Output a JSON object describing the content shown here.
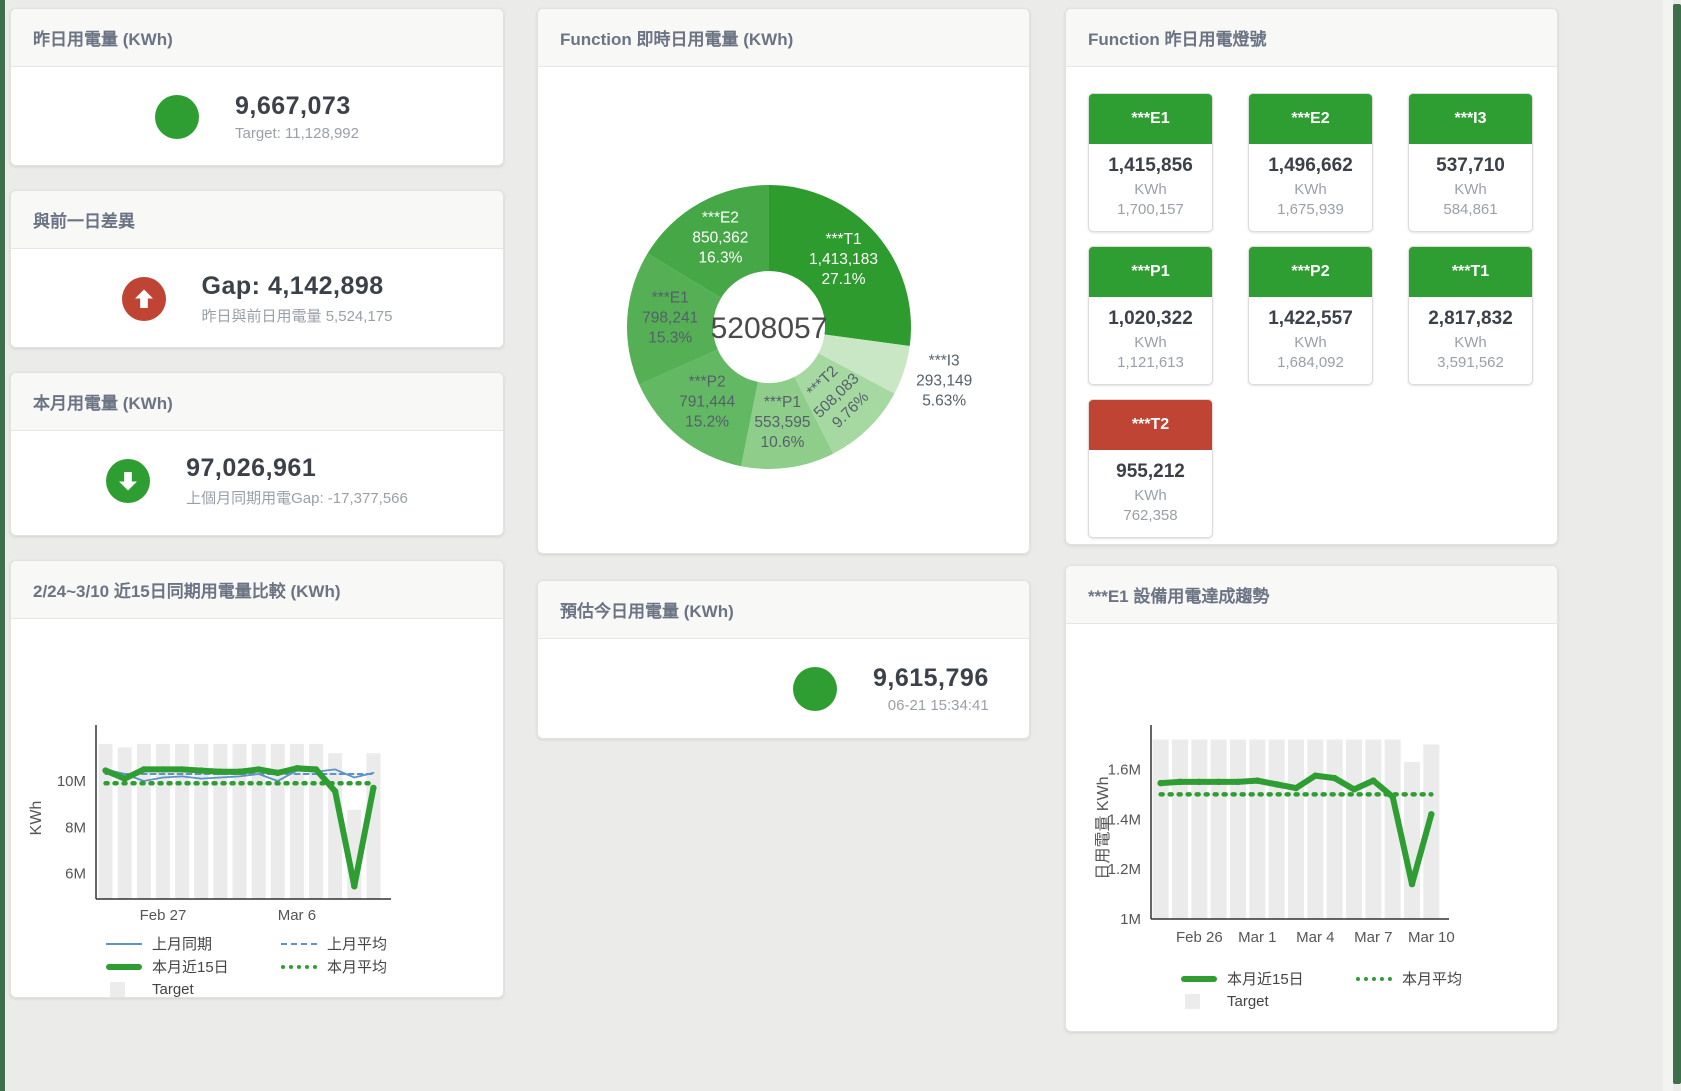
{
  "page": {
    "accent_green": "#2f9e32",
    "accent_red": "#bf4434",
    "accent_blue": "#5e92c8",
    "bar_gray": "#ebebeb"
  },
  "cards": {
    "yesterday": {
      "title": "昨日用電量 (KWh)",
      "value": "9,667,073",
      "subtitle": "Target: 11,128,992",
      "indicator": "green-dot"
    },
    "gap": {
      "title": "與前一日差異",
      "value": "Gap: 4,142,898",
      "subtitle": "昨日與前日用電量 5,524,175",
      "indicator": "red-up-arrow"
    },
    "month": {
      "title": "本月用電量 (KWh)",
      "value": "97,026,961",
      "subtitle": "上個月同期用電Gap: -17,377,566",
      "indicator": "green-down-arrow"
    },
    "donut": {
      "title": "Function 即時日用電量 (KWh)"
    },
    "lights": {
      "title": "Function 昨日用電燈號",
      "tiles": [
        {
          "name": "***E1",
          "value": "1,415,856",
          "unit": "KWh",
          "target": "1,700,157",
          "status": "green"
        },
        {
          "name": "***E2",
          "value": "1,496,662",
          "unit": "KWh",
          "target": "1,675,939",
          "status": "green"
        },
        {
          "name": "***I3",
          "value": "537,710",
          "unit": "KWh",
          "target": "584,861",
          "status": "green"
        },
        {
          "name": "***P1",
          "value": "1,020,322",
          "unit": "KWh",
          "target": "1,121,613",
          "status": "green"
        },
        {
          "name": "***P2",
          "value": "1,422,557",
          "unit": "KWh",
          "target": "1,684,092",
          "status": "green"
        },
        {
          "name": "***T1",
          "value": "2,817,832",
          "unit": "KWh",
          "target": "3,591,562",
          "status": "green"
        },
        {
          "name": "***T2",
          "value": "955,212",
          "unit": "KWh",
          "target": "762,358",
          "status": "red"
        }
      ]
    },
    "compare": {
      "title": "2/24~3/10 近15日同期用電量比較 (KWh)"
    },
    "forecast": {
      "title": "預估今日用電量 (KWh)",
      "value": "9,615,796",
      "subtitle": "06-21 15:34:41",
      "indicator": "green-dot"
    },
    "trend": {
      "title": "***E1 設備用電達成趨勢"
    }
  },
  "chart_data": [
    {
      "type": "pie",
      "title": "Function 即時日用電量 (KWh)",
      "center_label": "5208057",
      "unit": "KWh",
      "slices": [
        {
          "label": "***T1",
          "value": 1413183,
          "value_str": "1,413,183",
          "pct": "27.1%",
          "color": "#2e9b2e",
          "label_style": "inside-white"
        },
        {
          "label": "***I3",
          "value": 293149,
          "value_str": "293,149",
          "pct": "5.63%",
          "color": "#c9e7c5",
          "label_style": "outside"
        },
        {
          "label": "***T2",
          "value": 508083,
          "value_str": "508,083",
          "pct": "9.76%",
          "color": "#a6d9a2",
          "label_style": "inside-rotated"
        },
        {
          "label": "***P1",
          "value": 553595,
          "value_str": "553,595",
          "pct": "10.6%",
          "color": "#8fcd8b",
          "label_style": "inside"
        },
        {
          "label": "***P2",
          "value": 791444,
          "value_str": "791,444",
          "pct": "15.2%",
          "color": "#63b863",
          "label_style": "inside"
        },
        {
          "label": "***E1",
          "value": 798241,
          "value_str": "798,241",
          "pct": "15.3%",
          "color": "#55af55",
          "label_style": "inside"
        },
        {
          "label": "***E2",
          "value": 850362,
          "value_str": "850,362",
          "pct": "16.3%",
          "color": "#45a745",
          "label_style": "inside-white"
        }
      ]
    },
    {
      "type": "line",
      "title": "2/24~3/10 近15日同期用電量比較 (KWh)",
      "ylabel": "KWh",
      "ylim": [
        4900000,
        11900000
      ],
      "yticks": [
        {
          "v": 6000000,
          "label": "6M"
        },
        {
          "v": 8000000,
          "label": "8M"
        },
        {
          "v": 10000000,
          "label": "10M"
        }
      ],
      "x": [
        "2/24",
        "2/25",
        "2/26",
        "2/27",
        "2/28",
        "3/1",
        "3/2",
        "3/3",
        "3/4",
        "3/5",
        "3/6",
        "3/7",
        "3/8",
        "3/9",
        "3/10"
      ],
      "xticks": [
        {
          "i": 3,
          "label": "Feb 27"
        },
        {
          "i": 10,
          "label": "Mar 6"
        }
      ],
      "bars": {
        "name": "Target",
        "color": "#ebebeb",
        "values": [
          11600000,
          11450000,
          11600000,
          11600000,
          11600000,
          11600000,
          11600000,
          11600000,
          11600000,
          11600000,
          11600000,
          11600000,
          11200000,
          8750000,
          11200000
        ]
      },
      "series": [
        {
          "name": "上月同期",
          "color": "#5e92c8",
          "width": 1.8,
          "dash": "",
          "marker": false,
          "values": [
            10500000,
            10300000,
            10000000,
            10150000,
            10200000,
            10100000,
            10150000,
            10200000,
            10300000,
            10000000,
            10450000,
            10400000,
            10500000,
            10150000,
            10350000
          ]
        },
        {
          "name": "上月平均",
          "color": "#5e92c8",
          "width": 2,
          "dash": "5,4",
          "marker": false,
          "values": 10300000
        },
        {
          "name": "本月平均",
          "color": "#2f9e32",
          "width": 4.5,
          "dash": "2,7",
          "marker": false,
          "values": 9900000
        },
        {
          "name": "本月近15日",
          "color": "#2f9e32",
          "width": 6,
          "dash": "",
          "marker": true,
          "values": [
            10450000,
            10100000,
            10500000,
            10500000,
            10500000,
            10450000,
            10400000,
            10400000,
            10500000,
            10350000,
            10550000,
            10500000,
            9550000,
            5450000,
            9700000
          ]
        }
      ],
      "legend": [
        {
          "label": "上月同期",
          "swatch": "blue-line"
        },
        {
          "label": "上月平均",
          "swatch": "blue-dash"
        },
        {
          "label": "本月近15日",
          "swatch": "green-thick"
        },
        {
          "label": "本月平均",
          "swatch": "green-dot"
        },
        {
          "label": "Target",
          "swatch": "gray-box"
        }
      ],
      "legend_position": "bottom",
      "grid": false
    },
    {
      "type": "line",
      "title": "***E1 設備用電達成趨勢",
      "ylabel": "日用電量 KWh",
      "ylim": [
        1000000,
        1730000
      ],
      "yticks": [
        {
          "v": 1000000,
          "label": "1M"
        },
        {
          "v": 1200000,
          "label": "1.2M"
        },
        {
          "v": 1400000,
          "label": "1.4M"
        },
        {
          "v": 1600000,
          "label": "1.6M"
        }
      ],
      "x": [
        "2/24",
        "2/25",
        "2/26",
        "2/27",
        "2/28",
        "3/1",
        "3/2",
        "3/3",
        "3/4",
        "3/5",
        "3/6",
        "3/7",
        "3/8",
        "3/9",
        "3/10"
      ],
      "xticks": [
        {
          "i": 2,
          "label": "Feb 26"
        },
        {
          "i": 5,
          "label": "Mar 1"
        },
        {
          "i": 8,
          "label": "Mar 4"
        },
        {
          "i": 11,
          "label": "Mar 7"
        },
        {
          "i": 14,
          "label": "Mar 10"
        }
      ],
      "bars": {
        "name": "Target",
        "color": "#ebebeb",
        "values": [
          1720000,
          1720000,
          1720000,
          1720000,
          1720000,
          1720000,
          1720000,
          1720000,
          1720000,
          1720000,
          1720000,
          1720000,
          1720000,
          1630000,
          1700000
        ]
      },
      "series": [
        {
          "name": "本月平均",
          "color": "#2f9e32",
          "width": 4.5,
          "dash": "2,7",
          "marker": false,
          "values": 1500000
        },
        {
          "name": "本月近15日",
          "color": "#2f9e32",
          "width": 6,
          "dash": "",
          "marker": true,
          "values": [
            1545000,
            1550000,
            1550000,
            1550000,
            1550000,
            1555000,
            1540000,
            1525000,
            1575000,
            1565000,
            1520000,
            1555000,
            1490000,
            1140000,
            1420000
          ]
        }
      ],
      "legend": [
        {
          "label": "本月近15日",
          "swatch": "green-thick"
        },
        {
          "label": "本月平均",
          "swatch": "green-dot"
        },
        {
          "label": "Target",
          "swatch": "gray-box"
        }
      ],
      "legend_position": "bottom",
      "grid": false
    }
  ]
}
